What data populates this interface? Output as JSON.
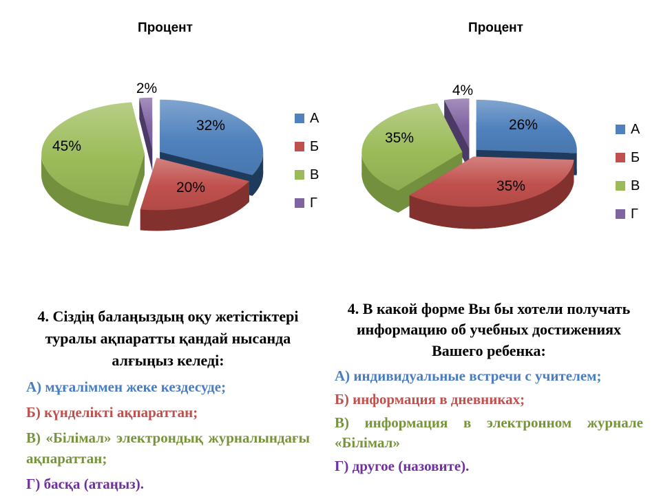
{
  "chart_data": [
    {
      "type": "pie",
      "title": "Процент",
      "categories": [
        "А",
        "Б",
        "В",
        "Г"
      ],
      "values": [
        32,
        20,
        45,
        2
      ],
      "data_labels": [
        "32%",
        "20%",
        "45%",
        "2%"
      ],
      "colors": [
        "#4F81BD",
        "#C0504D",
        "#9BBB59",
        "#8064A2"
      ],
      "side_colors": [
        "#1E3A5C",
        "#82312F",
        "#73903E",
        "#4C3A66"
      ],
      "legend_position": "right",
      "style": "3d-exploded",
      "label_pos": [
        [
          306,
          182
        ],
        [
          277,
          272
        ],
        [
          97,
          212
        ],
        [
          213,
          128
        ]
      ]
    },
    {
      "type": "pie",
      "title": "Процент",
      "categories": [
        "А",
        "Б",
        "В",
        "Г"
      ],
      "values": [
        26,
        35,
        35,
        4
      ],
      "data_labels": [
        "26%",
        "35%",
        "35%",
        "4%"
      ],
      "colors": [
        "#4F81BD",
        "#C0504D",
        "#9BBB59",
        "#8064A2"
      ],
      "side_colors": [
        "#1E3A5C",
        "#82312F",
        "#73903E",
        "#4C3A66"
      ],
      "legend_position": "right",
      "style": "3d-exploded",
      "label_pos": [
        [
          280,
          181
        ],
        [
          262,
          270
        ],
        [
          100,
          200
        ],
        [
          192,
          131
        ]
      ]
    }
  ],
  "questions": [
    {
      "heading": "4. Сіздің балаңыздың  оқу жетістіктері туралы ақпаратты қандай нысанда алғыңыз келеді:",
      "items": [
        {
          "text": "А) мұғаліммен жеке кездесуде;",
          "color": "#4A7CC2"
        },
        {
          "text": "Б) күнделікті ақпараттан;",
          "color": "#C0504D"
        },
        {
          "text": "В) «Білімал» электрондық журналындағы ақпараттан;",
          "color": "#77933C"
        },
        {
          "text": "Г) басқа (атаңыз).",
          "color": "#7030A0"
        }
      ]
    },
    {
      "heading": "4. В какой форме Вы бы хотели получать информацию об учебных достижениях Вашего ребенка:",
      "items": [
        {
          "text": "А) индивидуальные встречи с учителем;",
          "color": "#4A7CC2"
        },
        {
          "text": "Б) информация в дневниках;",
          "color": "#C0504D"
        },
        {
          "text": "В) информация в электронном журнале «Білімал»",
          "color": "#77933C"
        },
        {
          "text": "Г) другое (назовите).",
          "color": "#7030A0"
        }
      ]
    }
  ]
}
